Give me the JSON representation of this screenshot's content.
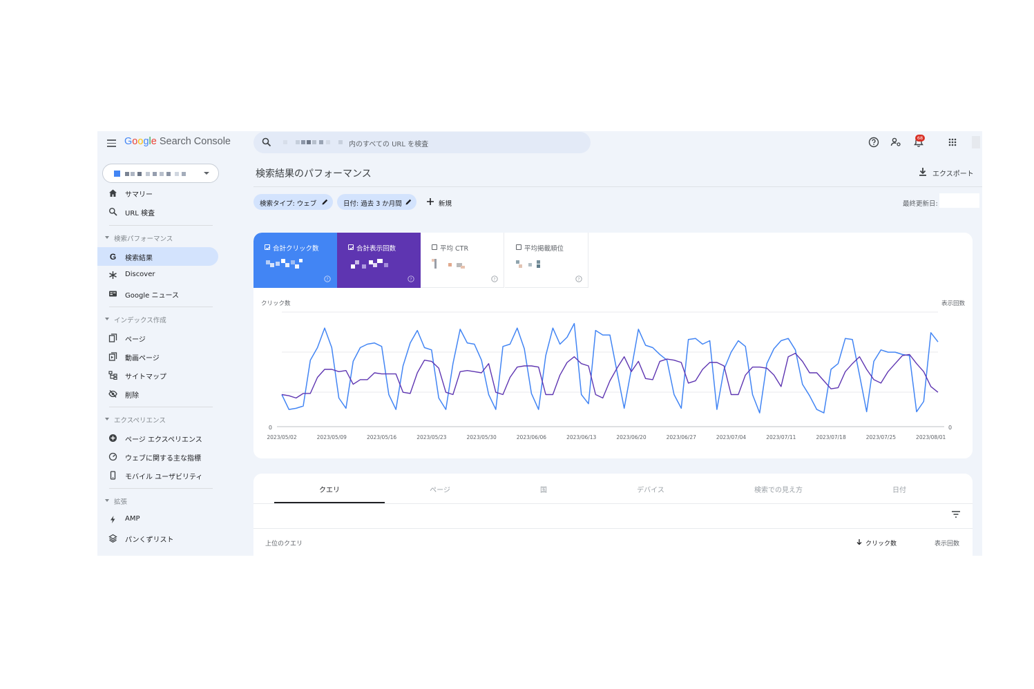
{
  "header": {
    "logo_letters": [
      "G",
      "o",
      "o",
      "g",
      "l",
      "e"
    ],
    "logo_suffix": "Search Console",
    "search_placeholder": "内のすべての URL を検査",
    "notification_count": "68",
    "icons": [
      "menu-icon",
      "search-icon",
      "help-icon",
      "manage-users-icon",
      "bell-icon",
      "apps-icon"
    ]
  },
  "sidebar": {
    "items": [
      {
        "id": "summary",
        "label": "サマリー",
        "icon": "home-icon"
      },
      {
        "id": "url-inspect",
        "label": "URL 検査",
        "icon": "search-icon"
      },
      {
        "id": "perf-section",
        "label": "検索パフォーマンス",
        "type": "section"
      },
      {
        "id": "search-results",
        "label": "検索結果",
        "icon": "google-g-icon",
        "active": true
      },
      {
        "id": "discover",
        "label": "Discover",
        "icon": "asterisk-icon"
      },
      {
        "id": "google-news",
        "label": "Google ニュース",
        "icon": "news-icon"
      },
      {
        "id": "index-section",
        "label": "インデックス作成",
        "type": "section"
      },
      {
        "id": "pages",
        "label": "ページ",
        "icon": "pages-icon"
      },
      {
        "id": "video-pages",
        "label": "動画ページ",
        "icon": "video-pages-icon"
      },
      {
        "id": "sitemaps",
        "label": "サイトマップ",
        "icon": "sitemap-icon"
      },
      {
        "id": "removals",
        "label": "削除",
        "icon": "eye-off-icon"
      },
      {
        "id": "experience-section",
        "label": "エクスペリエンス",
        "type": "section"
      },
      {
        "id": "page-experience",
        "label": "ページ エクスペリエンス",
        "icon": "plus-circle-icon"
      },
      {
        "id": "core-web-vitals",
        "label": "ウェブに関する主な指標",
        "icon": "gauge-icon"
      },
      {
        "id": "mobile-usability",
        "label": "モバイル ユーザビリティ",
        "icon": "phone-icon"
      },
      {
        "id": "enhancements-section",
        "label": "拡張",
        "type": "section"
      },
      {
        "id": "amp",
        "label": "AMP",
        "icon": "bolt-icon"
      },
      {
        "id": "breadcrumbs",
        "label": "パンくずリスト",
        "icon": "layers-icon"
      }
    ]
  },
  "main": {
    "title": "検索結果のパフォーマンス",
    "export_label": "エクスポート",
    "filters": {
      "search_type": "検索タイプ: ウェブ",
      "date": "日付: 過去 3 か月間",
      "new_label": "新規"
    },
    "last_updated_label": "最終更新日:",
    "metrics": [
      {
        "id": "clicks",
        "label": "合計クリック数",
        "checked": true,
        "color": "#4285f4"
      },
      {
        "id": "impressions",
        "label": "合計表示回数",
        "checked": true,
        "color": "#5e35b1"
      },
      {
        "id": "ctr",
        "label": "平均 CTR",
        "checked": false
      },
      {
        "id": "position",
        "label": "平均掲載順位",
        "checked": false
      }
    ],
    "tabs": [
      "クエリ",
      "ページ",
      "国",
      "デバイス",
      "検索での見え方",
      "日付"
    ],
    "active_tab": 0,
    "table": {
      "col_query": "上位のクエリ",
      "col_clicks": "クリック数",
      "col_impressions": "表示回数",
      "sort": "clicks-desc"
    }
  },
  "chart_data": {
    "type": "line",
    "ylabel_left": "クリック数",
    "ylabel_right": "表示回数",
    "y_left_zero": "0",
    "y_right_zero": "0",
    "grid": true,
    "x_tick_labels": [
      "2023/05/02",
      "2023/05/09",
      "2023/05/16",
      "2023/05/23",
      "2023/05/30",
      "2023/06/06",
      "2023/06/13",
      "2023/06/20",
      "2023/06/27",
      "2023/07/04",
      "2023/07/11",
      "2023/07/18",
      "2023/07/25",
      "2023/08/01"
    ],
    "x": [
      "2023/05/02",
      "2023/05/03",
      "2023/05/04",
      "2023/05/05",
      "2023/05/06",
      "2023/05/07",
      "2023/05/08",
      "2023/05/09",
      "2023/05/10",
      "2023/05/11",
      "2023/05/12",
      "2023/05/13",
      "2023/05/14",
      "2023/05/15",
      "2023/05/16",
      "2023/05/17",
      "2023/05/18",
      "2023/05/19",
      "2023/05/20",
      "2023/05/21",
      "2023/05/22",
      "2023/05/23",
      "2023/05/24",
      "2023/05/25",
      "2023/05/26",
      "2023/05/27",
      "2023/05/28",
      "2023/05/29",
      "2023/05/30",
      "2023/05/31",
      "2023/06/01",
      "2023/06/02",
      "2023/06/03",
      "2023/06/04",
      "2023/06/05",
      "2023/06/06",
      "2023/06/07",
      "2023/06/08",
      "2023/06/09",
      "2023/06/10",
      "2023/06/11",
      "2023/06/12",
      "2023/06/13",
      "2023/06/14",
      "2023/06/15",
      "2023/06/16",
      "2023/06/17",
      "2023/06/18",
      "2023/06/19",
      "2023/06/20",
      "2023/06/21",
      "2023/06/22",
      "2023/06/23",
      "2023/06/24",
      "2023/06/25",
      "2023/06/26",
      "2023/06/27",
      "2023/06/28",
      "2023/06/29",
      "2023/06/30",
      "2023/07/01",
      "2023/07/02",
      "2023/07/03",
      "2023/07/04",
      "2023/07/05",
      "2023/07/06",
      "2023/07/07",
      "2023/07/08",
      "2023/07/09",
      "2023/07/10",
      "2023/07/11",
      "2023/07/12",
      "2023/07/13",
      "2023/07/14",
      "2023/07/15",
      "2023/07/16",
      "2023/07/17",
      "2023/07/18",
      "2023/07/19",
      "2023/07/20",
      "2023/07/21",
      "2023/07/22",
      "2023/07/23",
      "2023/07/24",
      "2023/07/25",
      "2023/07/26",
      "2023/07/27",
      "2023/07/28",
      "2023/07/29",
      "2023/07/30",
      "2023/07/31",
      "2023/08/01",
      "2023/08/02"
    ],
    "series": [
      {
        "name": "合計クリック数",
        "color": "#4285f4",
        "axis": "left",
        "values": [
          28,
          15,
          16,
          18,
          58,
          69,
          86,
          69,
          25,
          16,
          57,
          69,
          72,
          73,
          70,
          28,
          15,
          53,
          73,
          84,
          69,
          67,
          25,
          15,
          55,
          85,
          73,
          72,
          58,
          28,
          15,
          70,
          72,
          86,
          68,
          29,
          15,
          62,
          86,
          72,
          78,
          90,
          28,
          20,
          84,
          80,
          80,
          48,
          16,
          50,
          85,
          71,
          69,
          63,
          58,
          28,
          16,
          76,
          77,
          72,
          75,
          15,
          50,
          65,
          75,
          70,
          28,
          12,
          55,
          68,
          75,
          77,
          67,
          37,
          27,
          15,
          12,
          50,
          55,
          77,
          76,
          45,
          13,
          57,
          67,
          65,
          65,
          63,
          62,
          13,
          22,
          82,
          74
        ]
      },
      {
        "name": "合計表示回数",
        "color": "#5e35b1",
        "axis": "right",
        "values": [
          28,
          27,
          25,
          29,
          29,
          43,
          50,
          50,
          48,
          49,
          37,
          41,
          41,
          47,
          46,
          46,
          46,
          30,
          29,
          47,
          58,
          57,
          51,
          30,
          28,
          48,
          49,
          48,
          47,
          55,
          30,
          28,
          43,
          52,
          53,
          53,
          52,
          28,
          28,
          45,
          56,
          61,
          55,
          53,
          28,
          25,
          40,
          51,
          61,
          48,
          57,
          42,
          41,
          57,
          59,
          58,
          56,
          38,
          40,
          50,
          56,
          56,
          53,
          28,
          28,
          45,
          52,
          52,
          51,
          45,
          35,
          61,
          64,
          57,
          47,
          47,
          40,
          33,
          34,
          48,
          55,
          61,
          50,
          41,
          38,
          48,
          55,
          62,
          63,
          55,
          48,
          35,
          30
        ]
      }
    ]
  }
}
